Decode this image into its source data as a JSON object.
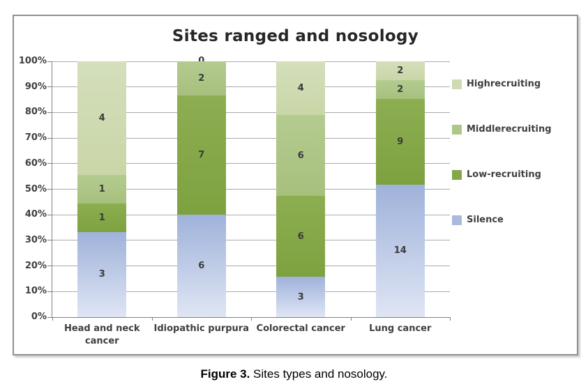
{
  "window": {
    "background": "#ffffff"
  },
  "figure": {
    "title": "Sites ranged and nosology",
    "caption": {
      "label": "Figure 3.",
      "text": " Sites types and nosology."
    }
  },
  "chart_data": {
    "type": "bar",
    "variant": "stacked-100-percent-column",
    "title": "Sites ranged and nosology",
    "categories": [
      "Head and neck cancer",
      "Idiopathic purpura",
      "Colorectal cancer",
      "Lung cancer"
    ],
    "series": [
      {
        "name": "Silence",
        "values": [
          3,
          6,
          3,
          14
        ],
        "fill_top": "#9fb2da",
        "fill_bottom": "#dfe5f4"
      },
      {
        "name": "Low-recruiting",
        "values": [
          1,
          7,
          6,
          9
        ],
        "fill_top": "#8cae51",
        "fill_bottom": "#7ea140"
      },
      {
        "name": "Middlerecruiting",
        "values": [
          1,
          2,
          6,
          2
        ],
        "fill_top": "#b4cb90",
        "fill_bottom": "#a7c07d"
      },
      {
        "name": "Highrecruiting",
        "values": [
          4,
          0,
          4,
          2
        ],
        "fill_top": "#d4dfbc",
        "fill_bottom": "#c9d6a7"
      }
    ],
    "legend": [
      {
        "label": "Highrecruiting",
        "swatch": "#cedab0"
      },
      {
        "label": "Middlerecruiting",
        "swatch": "#aec687"
      },
      {
        "label": "Low-recruiting",
        "swatch": "#85a747"
      },
      {
        "label": "Silence",
        "swatch": "#a9bade"
      }
    ],
    "y_ticks": [
      "0%",
      "10%",
      "20%",
      "30%",
      "40%",
      "50%",
      "60%",
      "70%",
      "80%",
      "90%",
      "100%"
    ],
    "ylim": [
      0,
      100
    ],
    "grid": true,
    "legend_position": "right",
    "xlabel": "",
    "ylabel": "",
    "data_labels": "raw counts shown inside segments"
  }
}
